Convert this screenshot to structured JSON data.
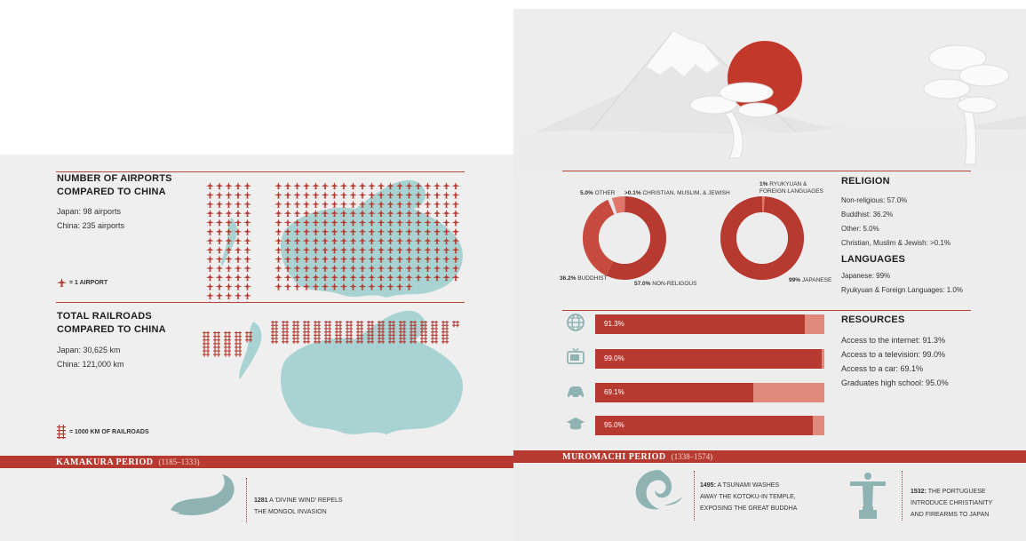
{
  "airports": {
    "title_line1": "Number of airports",
    "title_line2": "compared to China",
    "japan": "Japan: 98 airports",
    "china": "China: 235 airports",
    "legend": "= 1 AIRPORT",
    "japan_count": 98,
    "china_count": 235
  },
  "railroads": {
    "title_line1": "Total railroads",
    "title_line2": "compared to China",
    "japan": "Japan: 30,625 km",
    "china": "China: 121,000 km",
    "legend": "= 1000 KM OF RAILROADS",
    "japan_km": 30625,
    "china_km": 121000
  },
  "religion": {
    "title": "Religion",
    "items": [
      "Non-religious: 57.0%",
      "Buddhist: 36.2%",
      "Other: 5.0%",
      "Christian, Muslim & Jewish: >0.1%"
    ],
    "donut_labels": {
      "other_pct": "5.0%",
      "other": "OTHER",
      "christian_pct": ">0.1%",
      "christian": "CHRISTIAN, MUSLIM, & JEWISH",
      "buddhist_pct": "36.2%",
      "buddhist": "BUDDHIST",
      "nonrel_pct": "57.0%",
      "nonrel": "NON-RELIGOUS"
    }
  },
  "languages": {
    "title": "Languages",
    "items": [
      "Japanese: 99%",
      "Ryukyuan & Foreign Languages: 1.0%"
    ],
    "donut_labels": {
      "foreign_pct": "1%",
      "foreign_line1": "RYUKYUAN &",
      "foreign_line2": "FOREIGN LANGUAGES",
      "japanese_pct": "99%",
      "japanese": "JAPANESE"
    }
  },
  "resources": {
    "title": "Resources",
    "items": [
      "Access to the internet: 91.3%",
      "Access to a television: 99.0%",
      "Access to a car: 69.1%",
      "Graduates high school: 95.0%"
    ],
    "bars": [
      {
        "icon": "globe-icon",
        "label": "91.3%",
        "value": 91.3
      },
      {
        "icon": "television-icon",
        "label": "99.0%",
        "value": 99.0
      },
      {
        "icon": "car-icon",
        "label": "69.1%",
        "value": 69.1
      },
      {
        "icon": "graduation-cap-icon",
        "label": "95.0%",
        "value": 95.0
      }
    ]
  },
  "timeline": {
    "kamakura": {
      "name": "Kamakura Period",
      "years": "(1185–1333)"
    },
    "muromachi": {
      "name": "Muromachi Period",
      "years": "(1338–1574)"
    },
    "events": [
      {
        "year": "1281",
        "line1": "A 'DIVINE WIND' REPELS",
        "line2": "THE MONGOL INVASION",
        "line3": "",
        "icon": "wind-wave-icon"
      },
      {
        "year": "1495:",
        "line1": "A TSUNAMI WASHES",
        "line2": "AWAY THE KOTOKU-IN TEMPLE,",
        "line3": "EXPOSING THE GREAT BUDDHA",
        "icon": "tsunami-wave-icon"
      },
      {
        "year": "1532:",
        "line1": "THE PORTUGUESE",
        "line2": "INTRODUCE CHRISTIANITY",
        "line3": "AND FIREARMS TO JAPAN",
        "icon": "christ-statue-icon"
      }
    ]
  },
  "colors": {
    "accent": "#b73a30",
    "accent_light": "#e08a7e",
    "map": "#a9d3d3",
    "paper": "#efefef"
  }
}
